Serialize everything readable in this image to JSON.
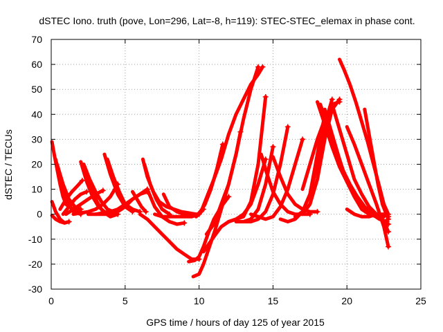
{
  "chart_data": {
    "type": "line",
    "title": "dSTEC Iono. truth (pove, Lon=296, Lat=-8, h=119): STEC-STEC_elemax in phase cont.",
    "xlabel": "GPS time / hours of day 125 of year 2015",
    "ylabel": "dSTEC  / TECUs",
    "xlim": [
      0,
      25
    ],
    "ylim": [
      -30,
      70
    ],
    "xticks": [
      0,
      5,
      10,
      15,
      20,
      25
    ],
    "yticks": [
      -30,
      -20,
      -10,
      0,
      10,
      20,
      30,
      40,
      50,
      60,
      70
    ],
    "grid": true,
    "marker": "+",
    "color": "#ff0000",
    "series": [
      {
        "x": [
          0.05,
          0.2,
          0.4,
          0.6,
          0.8,
          1.0,
          1.2,
          1.5,
          2.0
        ],
        "y": [
          29,
          24,
          18,
          12,
          7,
          4,
          3,
          2,
          1
        ]
      },
      {
        "x": [
          0.05,
          0.3,
          0.6,
          0.9,
          1.2
        ],
        "y": [
          5,
          1,
          -2,
          -3.5,
          -3
        ]
      },
      {
        "x": [
          0.05,
          0.3,
          0.6,
          0.9,
          1.2
        ],
        "y": [
          -0.5,
          -2,
          -3,
          -3.5,
          -3
        ]
      },
      {
        "x": [
          0.3,
          0.6,
          1.0,
          1.5,
          2.0
        ],
        "y": [
          22,
          14,
          6,
          1,
          0
        ]
      },
      {
        "x": [
          0.4,
          0.8,
          1.2,
          1.6,
          2.0
        ],
        "y": [
          20,
          12,
          6,
          3,
          2
        ]
      },
      {
        "x": [
          0.6,
          1.0,
          1.4,
          1.8,
          2.1
        ],
        "y": [
          2,
          6,
          9,
          11.5,
          13.5
        ]
      },
      {
        "x": [
          0.8,
          1.2,
          1.6,
          2.0,
          2.4
        ],
        "y": [
          0,
          3,
          6,
          8,
          9
        ]
      },
      {
        "x": [
          2.0,
          2.4,
          2.8,
          3.2,
          3.6,
          4.0
        ],
        "y": [
          21,
          13,
          7,
          3,
          1,
          0
        ]
      },
      {
        "x": [
          2.2,
          2.6,
          3.0,
          3.4,
          3.8,
          4.2
        ],
        "y": [
          20,
          14,
          9,
          5,
          2,
          1
        ]
      },
      {
        "x": [
          2.3,
          2.7,
          3.1,
          3.5,
          4.0,
          4.5
        ],
        "y": [
          18,
          11,
          5,
          1,
          -1,
          0
        ]
      },
      {
        "x": [
          1.0,
          1.5,
          2.0,
          2.5,
          3.0,
          3.5
        ],
        "y": [
          0,
          2,
          4,
          6,
          8,
          9.5
        ]
      },
      {
        "x": [
          1.5,
          2.0,
          2.5,
          3.0,
          3.5,
          4.0,
          4.5
        ],
        "y": [
          0,
          0.5,
          1,
          2,
          4,
          7,
          12
        ]
      },
      {
        "x": [
          3.6,
          4.0,
          4.5,
          5.0,
          5.5
        ],
        "y": [
          24,
          16,
          8,
          3,
          1
        ]
      },
      {
        "x": [
          3.8,
          4.2,
          4.6,
          5.0,
          5.5,
          6.0
        ],
        "y": [
          22,
          15,
          9,
          4,
          2,
          1
        ]
      },
      {
        "x": [
          2.5,
          3.0,
          3.5,
          4.0,
          4.5,
          5.0,
          5.5,
          6.0,
          6.5
        ],
        "y": [
          0,
          0,
          0.5,
          1,
          2,
          4,
          6,
          8,
          10
        ]
      },
      {
        "x": [
          3.0,
          3.5,
          4.0,
          4.5,
          5.0,
          5.5,
          6.0,
          6.5
        ],
        "y": [
          0,
          0,
          0,
          1,
          3,
          6,
          8,
          9
        ]
      },
      {
        "x": [
          5.5,
          5.8,
          6.1,
          6.4
        ],
        "y": [
          9,
          6,
          3,
          1
        ]
      },
      {
        "x": [
          6.2,
          6.5,
          6.9,
          7.3,
          7.8,
          8.3,
          8.8,
          9.3,
          9.8,
          10.0
        ],
        "y": [
          22,
          15,
          9,
          5,
          3,
          2,
          1,
          0.5,
          0,
          0
        ]
      },
      {
        "x": [
          6.3,
          6.7,
          7.1,
          7.5,
          8.0
        ],
        "y": [
          20,
          12,
          6,
          2,
          0
        ]
      },
      {
        "x": [
          6.5,
          7.0,
          7.5,
          8.0,
          8.5,
          9.0
        ],
        "y": [
          10,
          3,
          -1,
          -3,
          -4,
          -3.5
        ]
      },
      {
        "x": [
          6.0,
          6.5,
          7.0,
          7.5,
          8.0,
          8.5,
          9.0,
          9.5,
          10.0
        ],
        "y": [
          0,
          -2,
          -5,
          -8,
          -11,
          -14,
          -16,
          -18,
          -18
        ]
      },
      {
        "x": [
          7.6,
          8.0,
          8.5,
          9.0,
          9.5,
          10.0
        ],
        "y": [
          8,
          3,
          1,
          0,
          0,
          0
        ]
      },
      {
        "x": [
          7.0,
          7.5,
          8.0,
          8.5,
          9.0,
          9.5,
          10.0,
          10.3
        ],
        "y": [
          0,
          -1,
          -1,
          -1,
          -1,
          -1,
          0,
          2
        ]
      },
      {
        "x": [
          9.3,
          9.7,
          10.0,
          10.3,
          10.6,
          11.0,
          11.5,
          12.0
        ],
        "y": [
          -19,
          -18.5,
          -17,
          -13,
          -8,
          -2,
          3,
          7
        ]
      },
      {
        "x": [
          9.6,
          10.0,
          10.3,
          10.7,
          11.1,
          11.5,
          12.0,
          12.5,
          13.0,
          13.5,
          14.0
        ],
        "y": [
          -25,
          -24,
          -20,
          -13,
          -6,
          2,
          12,
          24,
          38,
          50,
          59
        ]
      },
      {
        "x": [
          9.8,
          10.2,
          10.6,
          11.0,
          11.5,
          12.0,
          12.5,
          13.0,
          13.5,
          14.0,
          14.3
        ],
        "y": [
          -1,
          2,
          8,
          14,
          22,
          32,
          40,
          46,
          52,
          56,
          59
        ]
      },
      {
        "x": [
          10.0,
          10.4,
          10.8,
          11.2,
          11.6
        ],
        "y": [
          0,
          4,
          10,
          18,
          28
        ]
      },
      {
        "x": [
          10.5,
          11.0,
          11.5,
          12.0,
          12.5,
          12.8
        ],
        "y": [
          -8,
          -4,
          4,
          12,
          24,
          33
        ]
      },
      {
        "x": [
          10.3,
          11.0,
          11.5,
          12.0,
          12.5,
          13.0,
          13.5,
          14.0,
          14.5
        ],
        "y": [
          -15,
          -9,
          -5,
          -3,
          -2,
          0,
          4,
          12,
          22
        ]
      },
      {
        "x": [
          12.0,
          12.5,
          13.0,
          13.5,
          14.0,
          14.5
        ],
        "y": [
          -3,
          -2,
          -1,
          5,
          20,
          47
        ]
      },
      {
        "x": [
          12.5,
          13.0,
          13.5,
          14.0,
          14.5,
          15.0
        ],
        "y": [
          -3,
          -3,
          -2,
          2,
          12,
          27
        ]
      },
      {
        "x": [
          13.0,
          13.5,
          14.0,
          14.5,
          15.0,
          15.5,
          16.0
        ],
        "y": [
          -3,
          -3,
          -2,
          1,
          8,
          20,
          35
        ]
      },
      {
        "x": [
          13.5,
          14.0,
          14.5,
          15.0,
          15.5,
          16.0,
          16.5,
          17.0
        ],
        "y": [
          0,
          -1,
          -2,
          -1,
          3,
          10,
          20,
          30
        ]
      },
      {
        "x": [
          14.2,
          14.6,
          15.0,
          15.5,
          16.0,
          16.5,
          17.0,
          17.5
        ],
        "y": [
          24,
          16,
          9,
          4,
          1,
          0,
          0,
          0
        ]
      },
      {
        "x": [
          15.0,
          15.5,
          16.0,
          16.5,
          17.0,
          17.5,
          18.0
        ],
        "y": [
          23,
          15,
          8,
          4,
          2,
          1,
          1
        ]
      },
      {
        "x": [
          15.5,
          16.0,
          16.5,
          17.0,
          17.5,
          18.0,
          18.5
        ],
        "y": [
          -2,
          -3,
          -2,
          1,
          8,
          24,
          40
        ]
      },
      {
        "x": [
          16.5,
          17.0,
          17.5,
          18.0,
          18.5,
          19.0
        ],
        "y": [
          -1,
          1,
          8,
          20,
          36,
          46
        ]
      },
      {
        "x": [
          17.0,
          17.5,
          18.0,
          18.5,
          19.0,
          19.5
        ],
        "y": [
          10,
          20,
          30,
          38,
          44,
          45
        ]
      },
      {
        "x": [
          17.0,
          17.5,
          18.0,
          18.5,
          19.0,
          19.5
        ],
        "y": [
          0,
          4,
          14,
          30,
          42,
          46
        ]
      },
      {
        "x": [
          18.0,
          18.5,
          19.0,
          19.5,
          20.0,
          20.5,
          21.0,
          21.5,
          22.0,
          22.5,
          22.8
        ],
        "y": [
          45,
          36,
          27,
          19,
          13,
          8,
          4,
          1,
          -1,
          -3,
          -4
        ]
      },
      {
        "x": [
          18.2,
          18.7,
          19.2,
          19.7,
          20.2,
          20.7,
          21.2,
          21.7,
          22.2,
          22.7
        ],
        "y": [
          44,
          35,
          26,
          18,
          12,
          7,
          3,
          0,
          -2,
          -3
        ]
      },
      {
        "x": [
          18.5,
          19.0,
          19.5,
          20.0,
          20.5,
          21.0,
          21.5,
          22.0,
          22.5
        ],
        "y": [
          42,
          32,
          22,
          13,
          7,
          2,
          0,
          -1,
          -1
        ]
      },
      {
        "x": [
          19.0,
          19.5,
          20.0,
          20.5,
          21.0,
          21.5,
          22.0,
          22.5,
          22.8
        ],
        "y": [
          44,
          34,
          24,
          14,
          8,
          3,
          0,
          -3,
          -7
        ]
      },
      {
        "x": [
          19.5,
          19.8,
          20.2,
          20.6,
          21.0,
          21.4,
          21.8,
          22.2,
          22.5,
          22.8
        ],
        "y": [
          62,
          58,
          52,
          45,
          37,
          29,
          20,
          11,
          4,
          0
        ]
      },
      {
        "x": [
          20.0,
          20.5,
          21.0,
          21.5,
          22.0,
          22.5,
          22.8
        ],
        "y": [
          35,
          28,
          20,
          12,
          4,
          -5,
          -13
        ]
      },
      {
        "x": [
          21.2,
          21.5,
          21.8,
          22.1,
          22.4,
          22.8
        ],
        "y": [
          42,
          32,
          22,
          12,
          4,
          -2
        ]
      },
      {
        "x": [
          20.0,
          20.5,
          21.0,
          21.5,
          22.0,
          22.5,
          22.8
        ],
        "y": [
          2,
          0,
          -1,
          -1,
          0,
          0,
          -1
        ]
      }
    ]
  }
}
